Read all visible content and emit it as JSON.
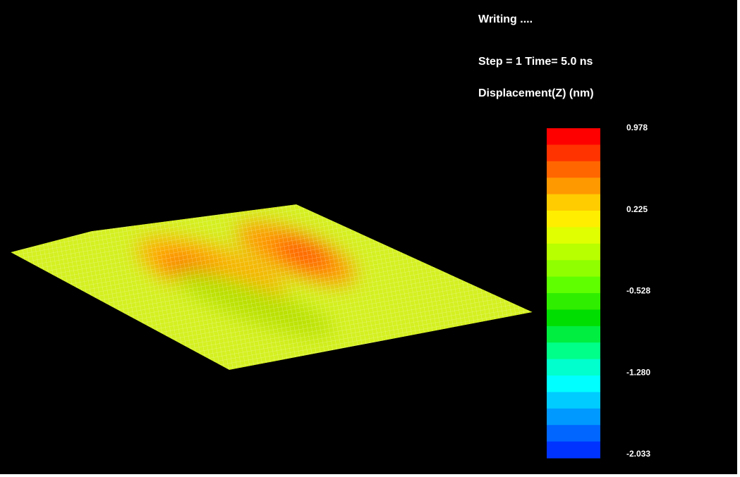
{
  "header": {
    "status": "Writing ....",
    "step": "Step = 1  Time= 5.0 ns",
    "quantity": "Displacement(Z) (nm)"
  },
  "colorbar": {
    "labels": [
      "0.978",
      "0.225",
      "-0.528",
      "-1.280",
      "-2.033"
    ],
    "colors": [
      "#ff0000",
      "#ff3300",
      "#ff6600",
      "#ff9900",
      "#ffcc00",
      "#ffee00",
      "#e0ff00",
      "#b8ff00",
      "#90ff00",
      "#60ff00",
      "#30ee00",
      "#00dd00",
      "#00ee40",
      "#00ff88",
      "#00ffcc",
      "#00ffff",
      "#00ccff",
      "#0099ff",
      "#0066ff",
      "#0033ff"
    ]
  }
}
